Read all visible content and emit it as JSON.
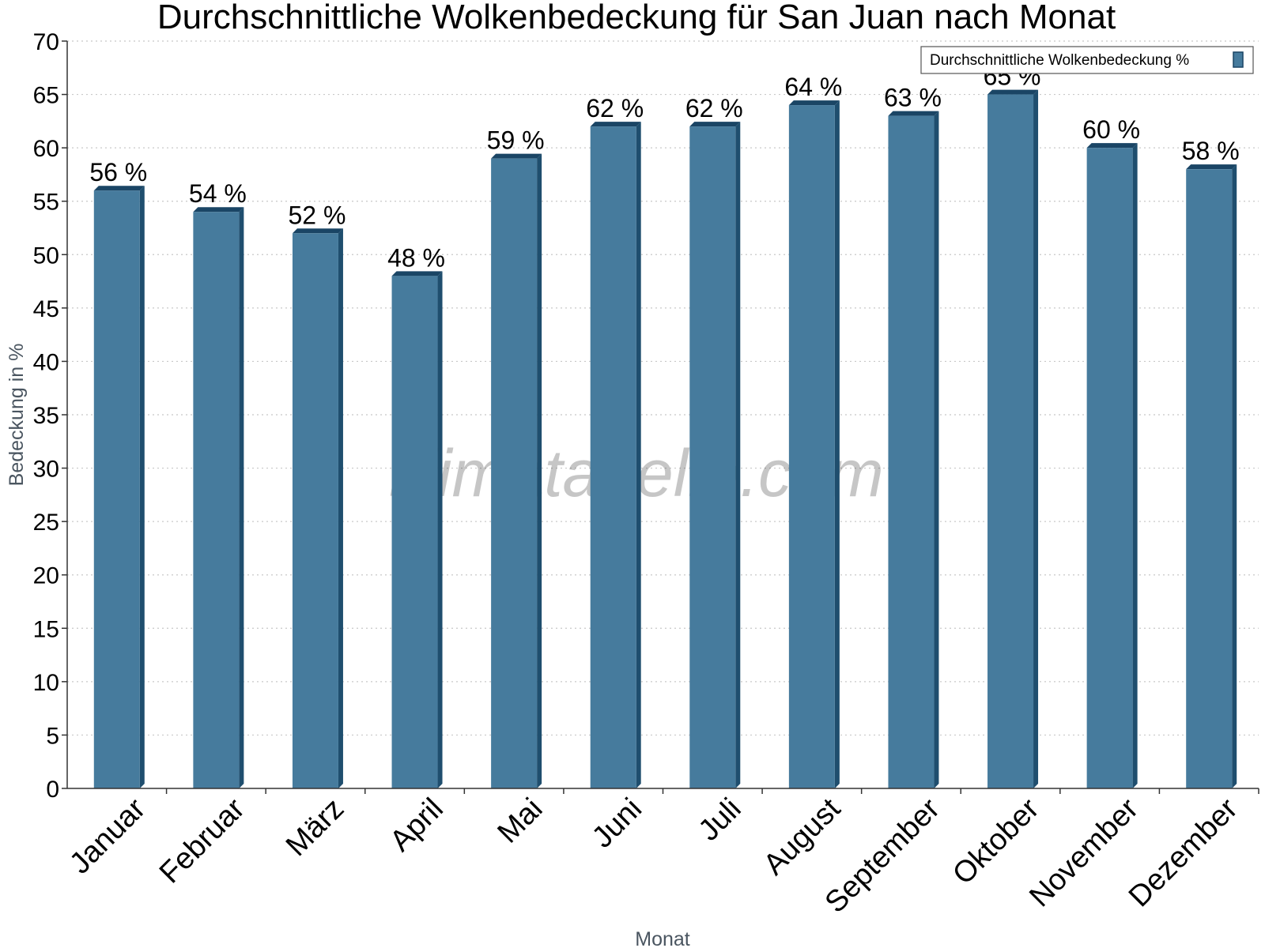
{
  "chart_data": {
    "type": "bar",
    "title": "Durchschnittliche Wolkenbedeckung für San Juan nach Monat",
    "xlabel": "Monat",
    "ylabel": "Bedeckung in %",
    "categories": [
      "Januar",
      "Februar",
      "März",
      "April",
      "Mai",
      "Juni",
      "Juli",
      "August",
      "September",
      "Oktober",
      "November",
      "Dezember"
    ],
    "series": [
      {
        "name": "Durchschnittliche Wolkenbedeckung %",
        "values": [
          56,
          54,
          52,
          48,
          59,
          62,
          62,
          64,
          63,
          65,
          60,
          58
        ],
        "labels": [
          "56 %",
          "54 %",
          "52 %",
          "48 %",
          "59 %",
          "62 %",
          "62 %",
          "64 %",
          "63 %",
          "65 %",
          "60 %",
          "58 %"
        ]
      }
    ],
    "ylim": [
      0,
      70
    ],
    "yticks": [
      0,
      5,
      10,
      15,
      20,
      25,
      30,
      35,
      40,
      45,
      50,
      55,
      60,
      65,
      70
    ],
    "grid": true,
    "legend_position": "top-right",
    "colors": {
      "bar": "#467b9d",
      "bar_side": "#1f4e6e",
      "bar_top": "#1a4565"
    }
  },
  "watermark": "klimatabelle.com"
}
